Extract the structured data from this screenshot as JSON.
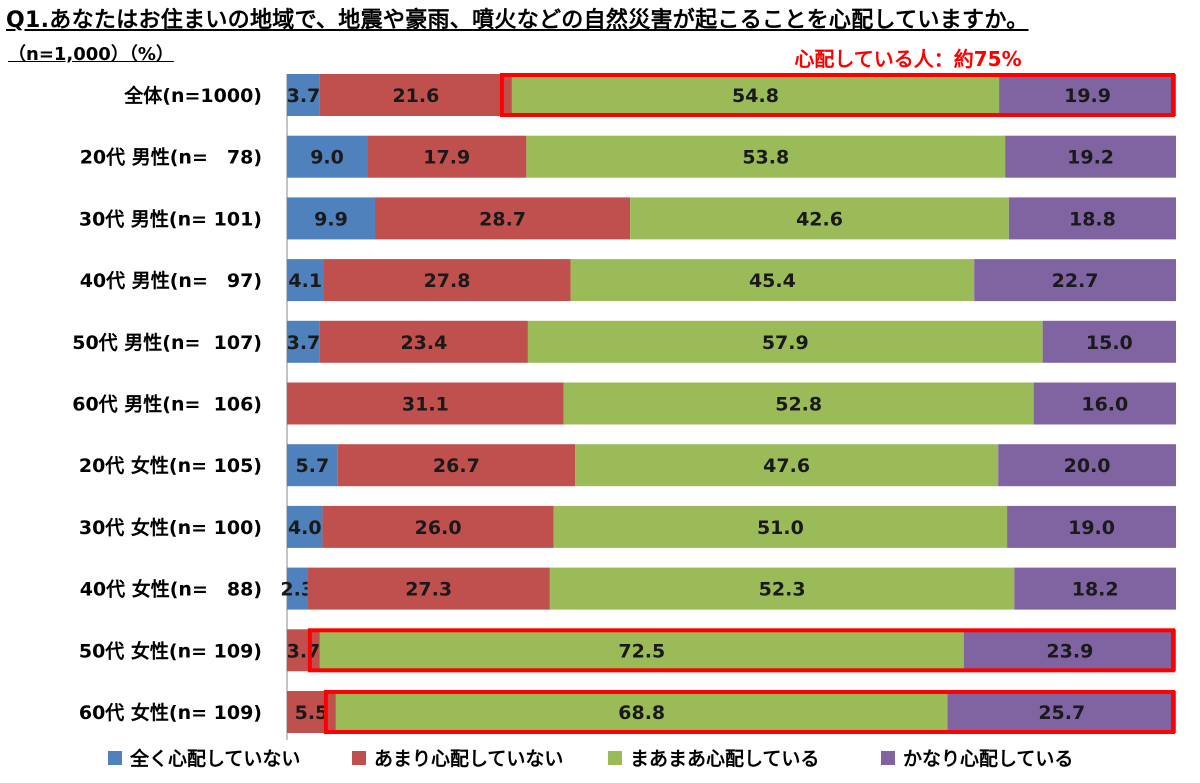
{
  "title": "Q1.あなたはお住まいの地域で、地震や豪雨、噴火などの自然災害が起こることを心配していますか。",
  "subtitle": "（n=1,000）（%）",
  "callout": "心配している人：約75%",
  "colors": {
    "series": [
      "#4f81bd",
      "#c0504d",
      "#9bbb59",
      "#8064a2"
    ],
    "highlight": "#ff0000"
  },
  "chart_data": {
    "type": "bar",
    "orientation": "horizontal",
    "stacked": true,
    "xlim": [
      0,
      100
    ],
    "categories": [
      "全体(n=1000)",
      "20代 男性(n=　78)",
      "30代 男性(n= 101)",
      "40代 男性(n=　97)",
      "50代 男性(n=  107)",
      "60代 男性(n=  106)",
      "20代 女性(n= 105)",
      "30代 女性(n= 100)",
      "40代 女性(n=　88)",
      "50代 女性(n= 109)",
      "60代 女性(n= 109)"
    ],
    "series": [
      {
        "name": "全く心配していない",
        "values": [
          3.7,
          9.0,
          9.9,
          4.1,
          3.7,
          0,
          5.7,
          4.0,
          2.3,
          0,
          0
        ]
      },
      {
        "name": "あまり心配していない",
        "values": [
          21.6,
          17.9,
          28.7,
          27.8,
          23.4,
          31.1,
          26.7,
          26.0,
          27.3,
          3.7,
          5.5
        ]
      },
      {
        "name": "まあまあ心配している",
        "values": [
          54.8,
          53.8,
          42.6,
          45.4,
          57.9,
          52.8,
          47.6,
          51.0,
          52.3,
          72.5,
          68.8
        ]
      },
      {
        "name": "かなり心配している",
        "values": [
          19.9,
          19.2,
          18.8,
          22.7,
          15.0,
          16.0,
          20.0,
          19.0,
          18.2,
          23.9,
          25.7
        ]
      }
    ],
    "highlighted_rows": [
      0,
      9,
      10
    ],
    "legend_position": "bottom"
  }
}
